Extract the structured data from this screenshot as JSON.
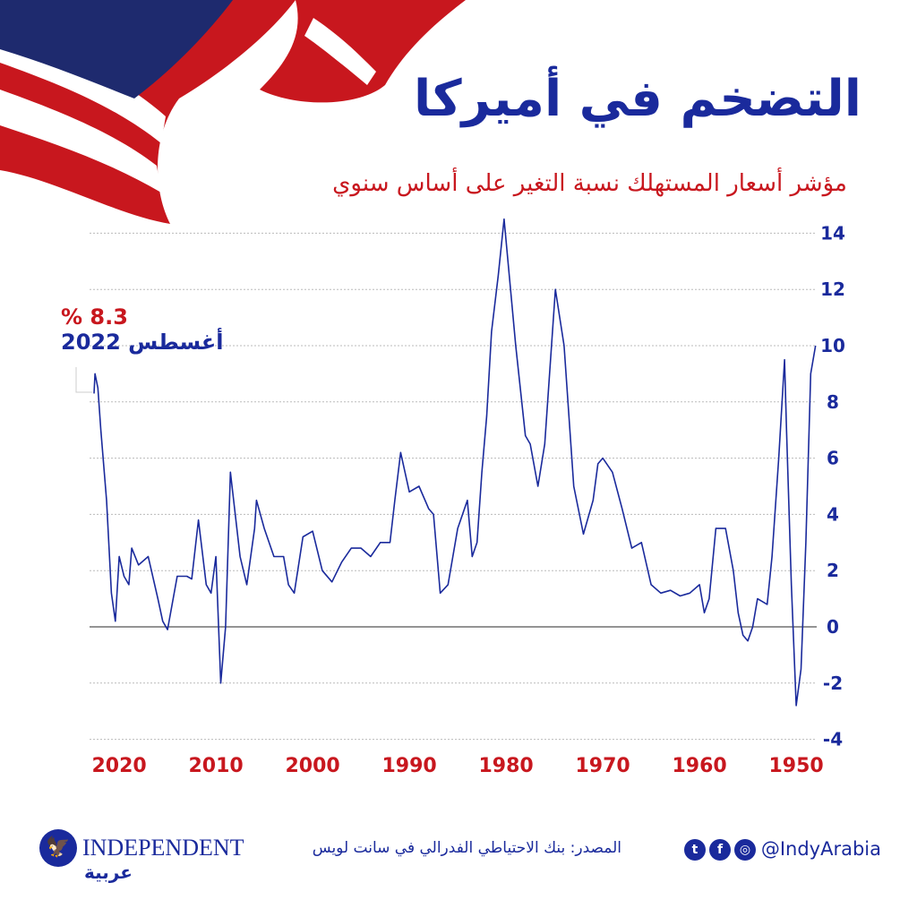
{
  "header": {
    "title": "التضخم في أميركا",
    "subtitle": "مؤشر أسعار المستهلك نسبة التغير على أساس سنوي"
  },
  "annotation": {
    "value": "% 8.3",
    "date": "أغسطس 2022"
  },
  "footer": {
    "source": "المصدر: بنك الاحتياطي الفدرالي في سانت لويس",
    "handle": "@IndyArabia",
    "logo_name": "INDEPENDENT",
    "logo_arabic": "عربية",
    "social_icons": [
      "twitter-icon",
      "facebook-icon",
      "instagram-icon"
    ]
  },
  "colors": {
    "title": "#1a2a9c",
    "subtitle": "#c8171e",
    "line": "#1a2a9c",
    "xlabels": "#c8171e",
    "ylabels": "#1a2a9c"
  },
  "chart_data": {
    "type": "line",
    "title": "التضخم في أميركا",
    "subtitle": "مؤشر أسعار المستهلك نسبة التغير على أساس سنوي",
    "x_reversed": true,
    "xlim": [
      1947,
      2022.7
    ],
    "ylim": [
      -4,
      14
    ],
    "xticks": [
      2020,
      2010,
      2000,
      1990,
      1980,
      1970,
      1960,
      1950
    ],
    "yticks": [
      14,
      12,
      10,
      8,
      6,
      4,
      2,
      0,
      -2,
      -4
    ],
    "grid": "horizontal dotted",
    "y_axis_side": "right",
    "series": [
      {
        "x": [
          1948.0,
          1948.5,
          1949.0,
          1949.5,
          1950.0,
          1950.5,
          1951.0,
          1951.2,
          1951.8,
          1952.5,
          1953.0,
          1954.0,
          1954.5,
          1955.0,
          1955.5,
          1956.0,
          1956.5,
          1957.3,
          1958.3,
          1959.0,
          1959.5,
          1960.0,
          1961.0,
          1962.0,
          1963.0,
          1964.0,
          1965.0,
          1966.0,
          1967.0,
          1968.0,
          1969.0,
          1970.0,
          1970.5,
          1971.0,
          1972.0,
          1973.0,
          1973.5,
          1974.0,
          1974.9,
          1975.5,
          1976.0,
          1976.7,
          1977.5,
          1978.0,
          1979.0,
          1980.2,
          1980.8,
          1981.5,
          1982.0,
          1982.5,
          1983.0,
          1983.5,
          1984.0,
          1985.0,
          1986.0,
          1986.8,
          1987.5,
          1988.0,
          1989.0,
          1990.0,
          1990.9,
          1991.5,
          1992.0,
          1993.0,
          1994.0,
          1995.0,
          1996.0,
          1997.0,
          1998.0,
          1999.0,
          2000.0,
          2001.0,
          2001.9,
          2002.5,
          2003.0,
          2004.0,
          2005.0,
          2005.8,
          2006.0,
          2006.8,
          2007.5,
          2008.5,
          2009.0,
          2009.5,
          2010.0,
          2010.5,
          2011.0,
          2011.8,
          2012.5,
          2013.0,
          2014.0,
          2015.0,
          2015.5,
          2016.0,
          2017.0,
          2018.0,
          2018.7,
          2019.0,
          2019.5,
          2020.0,
          2020.4,
          2020.8,
          2021.3,
          2021.9,
          2022.2,
          2022.5,
          2022.6
        ],
        "values": [
          10.0,
          9.0,
          3.0,
          -1.5,
          -2.8,
          1.5,
          7.0,
          9.5,
          6.0,
          2.5,
          0.8,
          1.0,
          0.0,
          -0.5,
          -0.3,
          0.5,
          2.0,
          3.5,
          3.5,
          1.0,
          0.5,
          1.5,
          1.2,
          1.1,
          1.3,
          1.2,
          1.5,
          3.0,
          2.8,
          4.2,
          5.5,
          6.0,
          5.8,
          4.5,
          3.3,
          5.0,
          7.5,
          10.0,
          12.0,
          9.0,
          6.5,
          5.0,
          6.5,
          6.8,
          10.0,
          14.5,
          12.5,
          10.5,
          7.5,
          5.5,
          3.0,
          2.5,
          4.5,
          3.5,
          1.5,
          1.2,
          4.0,
          4.2,
          5.0,
          4.8,
          6.2,
          4.5,
          3.0,
          3.0,
          2.5,
          2.8,
          2.8,
          2.3,
          1.6,
          2.0,
          3.4,
          3.2,
          1.2,
          1.5,
          2.5,
          2.5,
          3.5,
          4.5,
          3.5,
          1.5,
          2.5,
          5.5,
          0.0,
          -2.0,
          2.5,
          1.2,
          1.5,
          3.8,
          1.7,
          1.8,
          1.8,
          -0.1,
          0.2,
          1.0,
          2.5,
          2.2,
          2.8,
          1.5,
          1.8,
          2.5,
          0.2,
          1.2,
          4.5,
          7.0,
          8.5,
          9.0,
          8.3
        ]
      }
    ]
  }
}
